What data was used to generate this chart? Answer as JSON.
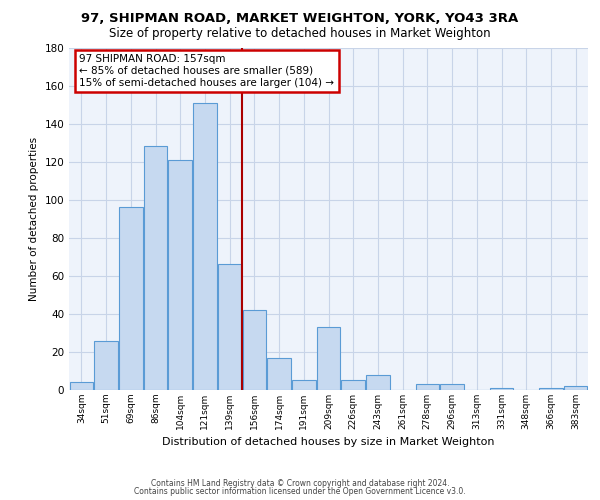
{
  "title": "97, SHIPMAN ROAD, MARKET WEIGHTON, YORK, YO43 3RA",
  "subtitle": "Size of property relative to detached houses in Market Weighton",
  "xlabel": "Distribution of detached houses by size in Market Weighton",
  "ylabel": "Number of detached properties",
  "bar_labels": [
    "34sqm",
    "51sqm",
    "69sqm",
    "86sqm",
    "104sqm",
    "121sqm",
    "139sqm",
    "156sqm",
    "174sqm",
    "191sqm",
    "209sqm",
    "226sqm",
    "243sqm",
    "261sqm",
    "278sqm",
    "296sqm",
    "313sqm",
    "331sqm",
    "348sqm",
    "366sqm",
    "383sqm"
  ],
  "bar_values": [
    4,
    26,
    96,
    128,
    121,
    151,
    66,
    42,
    17,
    5,
    33,
    5,
    8,
    0,
    3,
    3,
    0,
    1,
    0,
    1,
    2
  ],
  "bar_color": "#c6d9f0",
  "bar_edge_color": "#5a9bd5",
  "annotation_box_text": "97 SHIPMAN ROAD: 157sqm\n← 85% of detached houses are smaller (589)\n15% of semi-detached houses are larger (104) →",
  "annotation_box_color": "#ffffff",
  "annotation_box_edge_color": "#cc0000",
  "red_line_color": "#aa0000",
  "ylim": [
    0,
    180
  ],
  "yticks": [
    0,
    20,
    40,
    60,
    80,
    100,
    120,
    140,
    160,
    180
  ],
  "grid_color": "#c8d4e8",
  "background_color": "#ffffff",
  "plot_bg_color": "#eef3fb",
  "footer_line1": "Contains HM Land Registry data © Crown copyright and database right 2024.",
  "footer_line2": "Contains public sector information licensed under the Open Government Licence v3.0."
}
